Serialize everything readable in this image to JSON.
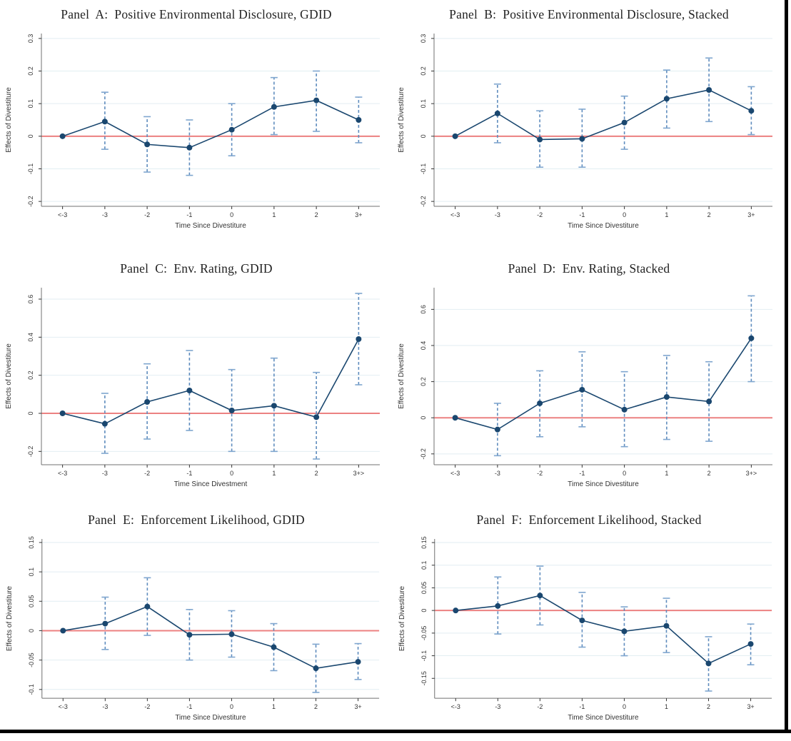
{
  "figure_name": "event-study-divestiture-effects",
  "colors": {
    "line": "#1a476f",
    "marker": "#1a476f",
    "ci": "#5f8cbe",
    "ci_cap": "#7fa6cf",
    "zero_line": "#ec8181",
    "grid": "#e2eef2",
    "axis": "#707070",
    "frame_border": "#000000"
  },
  "chart_data": [
    {
      "panel": "A",
      "type": "line",
      "title": "Panel  A:  Positive Environmental Disclosure, GDID",
      "xlabel": "Time Since Divestiture",
      "ylabel": "Effects of Divestiture",
      "categories": [
        "<-3",
        "-3",
        "-2",
        "-1",
        "0",
        "1",
        "2",
        "3+"
      ],
      "yticks": [
        -0.2,
        -0.1,
        0,
        0.1,
        0.2,
        0.3
      ],
      "ytick_labels": [
        "-0.2",
        "-0.1",
        "0",
        "0.1",
        "0.2",
        "0.3"
      ],
      "ylim": [
        -0.215,
        0.315
      ],
      "ref_line_y": 0,
      "estimates": [
        0,
        0.045,
        -0.025,
        -0.035,
        0.02,
        0.09,
        0.11,
        0.05
      ],
      "ci_low": [
        null,
        -0.04,
        -0.11,
        -0.12,
        -0.06,
        0.005,
        0.015,
        -0.02
      ],
      "ci_high": [
        null,
        0.135,
        0.06,
        0.05,
        0.1,
        0.18,
        0.2,
        0.12
      ],
      "grid": true,
      "legend": "none"
    },
    {
      "panel": "B",
      "type": "line",
      "title": "Panel  B:  Positive Environmental Disclosure, Stacked",
      "xlabel": "Time Since Divestiture",
      "ylabel": "Effects of Divestiture",
      "categories": [
        "<-3",
        "-3",
        "-2",
        "-1",
        "0",
        "1",
        "2",
        "3+"
      ],
      "yticks": [
        -0.2,
        -0.1,
        0,
        0.1,
        0.2,
        0.3
      ],
      "ytick_labels": [
        "-0.2",
        "-0.1",
        "0",
        "0.1",
        "0.2",
        "0.3"
      ],
      "ylim": [
        -0.215,
        0.315
      ],
      "ref_line_y": 0,
      "estimates": [
        0,
        0.07,
        -0.01,
        -0.008,
        0.042,
        0.115,
        0.142,
        0.078
      ],
      "ci_low": [
        null,
        -0.02,
        -0.095,
        -0.095,
        -0.04,
        0.025,
        0.045,
        0.005
      ],
      "ci_high": [
        null,
        0.16,
        0.078,
        0.083,
        0.123,
        0.203,
        0.24,
        0.152
      ],
      "grid": true,
      "legend": "none"
    },
    {
      "panel": "C",
      "type": "line",
      "title": "Panel  C:  Env. Rating, GDID",
      "xlabel": "Time Since Divestment",
      "ylabel": "Effects of Divestiture",
      "categories": [
        "<-3",
        "-3",
        "-2",
        "-1",
        "0",
        "1",
        "2",
        "3+>"
      ],
      "yticks": [
        -0.2,
        0,
        0.2,
        0.4,
        0.6
      ],
      "ytick_labels": [
        "-0.2",
        "0",
        "0.2",
        "0.4",
        "0.6"
      ],
      "ylim": [
        -0.27,
        0.66
      ],
      "ref_line_y": 0,
      "estimates": [
        0,
        -0.055,
        0.06,
        0.12,
        0.015,
        0.04,
        -0.02,
        0.39
      ],
      "ci_low": [
        null,
        -0.21,
        -0.135,
        -0.09,
        -0.2,
        -0.2,
        -0.24,
        0.15
      ],
      "ci_high": [
        null,
        0.105,
        0.26,
        0.33,
        0.23,
        0.29,
        0.215,
        0.63
      ],
      "grid": true,
      "legend": "none"
    },
    {
      "panel": "D",
      "type": "line",
      "title": "Panel  D:  Env. Rating, Stacked",
      "xlabel": "Time Since Divestiture",
      "ylabel": "Effects of Divestiture",
      "categories": [
        "<-3",
        "-3",
        "-2",
        "-1",
        "0",
        "1",
        "2",
        "3+>"
      ],
      "yticks": [
        -0.2,
        0,
        0.2,
        0.4,
        0.6
      ],
      "ytick_labels": [
        "-0.2",
        "0",
        "0.2",
        "0.4",
        "0.6"
      ],
      "ylim": [
        -0.26,
        0.72
      ],
      "ref_line_y": 0,
      "estimates": [
        0,
        -0.065,
        0.08,
        0.155,
        0.045,
        0.115,
        0.09,
        0.44
      ],
      "ci_low": [
        null,
        -0.21,
        -0.105,
        -0.05,
        -0.16,
        -0.12,
        -0.13,
        0.2
      ],
      "ci_high": [
        null,
        0.08,
        0.26,
        0.365,
        0.255,
        0.345,
        0.31,
        0.675
      ],
      "grid": true,
      "legend": "none"
    },
    {
      "panel": "E",
      "type": "line",
      "title": "Panel  E:  Enforcement Likelihood, GDID",
      "xlabel": "Time Since Divestiture",
      "ylabel": "Effects of Divestiture",
      "categories": [
        "<-3",
        "-3",
        "-2",
        "-1",
        "0",
        "1",
        "2",
        "3+"
      ],
      "yticks": [
        -0.1,
        -0.05,
        0,
        0.05,
        0.1,
        0.15
      ],
      "ytick_labels": [
        "-0.1",
        "-0.05",
        "0",
        "0.05",
        "0.1",
        "0.15"
      ],
      "ylim": [
        -0.115,
        0.156
      ],
      "ref_line_y": 0,
      "estimates": [
        0,
        0.012,
        0.041,
        -0.007,
        -0.006,
        -0.028,
        -0.064,
        -0.053
      ],
      "ci_low": [
        null,
        -0.032,
        -0.008,
        -0.05,
        -0.045,
        -0.068,
        -0.105,
        -0.083
      ],
      "ci_high": [
        null,
        0.057,
        0.09,
        0.036,
        0.034,
        0.012,
        -0.023,
        -0.022
      ],
      "grid": true,
      "legend": "none"
    },
    {
      "panel": "F",
      "type": "line",
      "title": "Panel  F:  Enforcement Likelihood, Stacked",
      "xlabel": "Time Since Divestiture",
      "ylabel": "Effects of Divestiture",
      "categories": [
        "<-3",
        "-3",
        "-2",
        "-1",
        "0",
        "1",
        "2",
        "3+"
      ],
      "yticks": [
        -0.15,
        -0.1,
        -0.05,
        0,
        0.05,
        0.1,
        0.15
      ],
      "ytick_labels": [
        "-0.15",
        "-0.1",
        "-0.05",
        "0",
        "0.05",
        "0.1",
        "0.15"
      ],
      "ylim": [
        -0.194,
        0.158
      ],
      "ref_line_y": 0,
      "estimates": [
        0,
        0.01,
        0.033,
        -0.022,
        -0.046,
        -0.034,
        -0.117,
        -0.074
      ],
      "ci_low": [
        null,
        -0.052,
        -0.032,
        -0.081,
        -0.1,
        -0.093,
        -0.178,
        -0.12
      ],
      "ci_high": [
        null,
        0.074,
        0.098,
        0.04,
        0.008,
        0.027,
        -0.058,
        -0.03
      ],
      "grid": true,
      "legend": "none"
    }
  ]
}
